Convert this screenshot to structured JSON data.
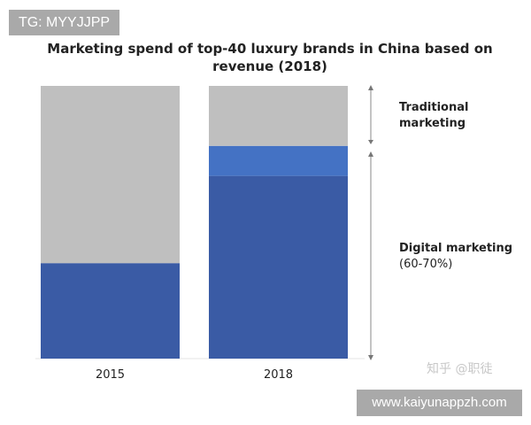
{
  "overlay_tag": "TG: MYYJJPP",
  "watermark": "知乎 @职徒",
  "site_url": "www.kaiyunappzh.com",
  "chart_data": {
    "type": "bar",
    "stacked": true,
    "title": "Marketing spend of top-40 luxury brands in China based on revenue (2018)",
    "categories": [
      "2015",
      "2018"
    ],
    "ylim": [
      0,
      100
    ],
    "grid": false,
    "series": [
      {
        "key": "digital",
        "values": [
          35,
          67
        ],
        "color": "#3a5ba5"
      },
      {
        "key": "digital_range",
        "values": [
          0,
          11
        ],
        "color": "#4472c4"
      },
      {
        "key": "traditional",
        "values": [
          65,
          22
        ],
        "color": "#bfbfbf"
      }
    ],
    "annotations": {
      "traditional": {
        "title": "Traditional marketing"
      },
      "digital": {
        "title": "Digital marketing",
        "range": "(60-70%)"
      }
    }
  }
}
